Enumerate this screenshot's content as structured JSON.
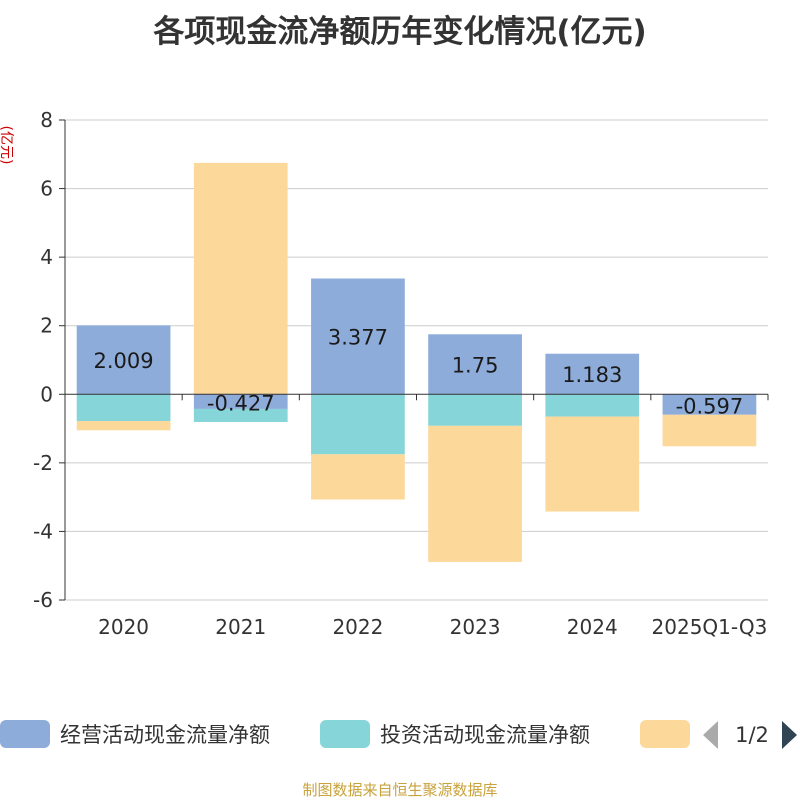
{
  "chart_data": {
    "type": "bar",
    "stacked": true,
    "title": "各项现金流净额历年变化情况(亿元)",
    "ylabel": "(亿元)",
    "xlabel": "",
    "ylim": [
      -6,
      8
    ],
    "yticks": [
      -6,
      -4,
      -2,
      0,
      2,
      4,
      6,
      8
    ],
    "categories": [
      "2020",
      "2021",
      "2022",
      "2023",
      "2024",
      "2025Q1-Q3"
    ],
    "series": [
      {
        "name": "经营活动现金流量净额",
        "color": "#8eacda",
        "values": [
          2.009,
          -0.427,
          3.377,
          1.75,
          1.183,
          -0.597
        ],
        "data_labels": [
          "2.009",
          "-0.427",
          "3.377",
          "1.75",
          "1.183",
          "-0.597"
        ]
      },
      {
        "name": "投资活动现金流量净额",
        "color": "#86d5d8",
        "values": [
          -0.78,
          -0.38,
          -1.75,
          -0.92,
          -0.65,
          0
        ]
      },
      {
        "name": "",
        "color": "#fdd89b",
        "values": [
          -0.27,
          6.75,
          -1.32,
          -3.97,
          -2.77,
          -0.92
        ]
      }
    ],
    "legend": {
      "position": "bottom",
      "page_indicator": "1/2"
    },
    "source": "制图数据来自恒生聚源数据库"
  }
}
